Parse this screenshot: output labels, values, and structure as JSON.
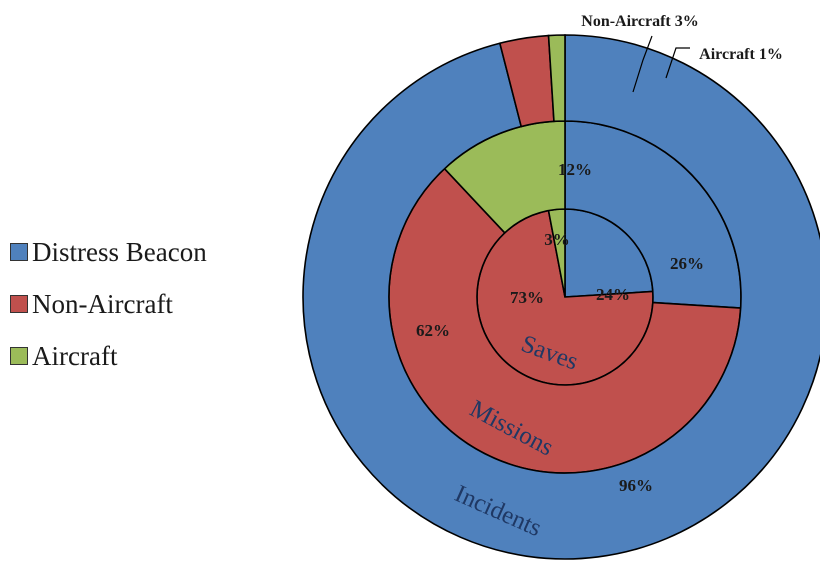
{
  "chart_data": {
    "type": "pie",
    "subtype": "nested-donut",
    "categories": [
      "Distress Beacon",
      "Non-Aircraft",
      "Aircraft"
    ],
    "colors": [
      "#4f81bd",
      "#c0504d",
      "#9bbb59"
    ],
    "series": [
      {
        "name": "Incidents",
        "values": [
          96,
          3,
          1
        ],
        "labels": [
          "96%",
          "Non-Aircraft 3%",
          "Aircraft 1%"
        ]
      },
      {
        "name": "Missions",
        "values": [
          26,
          62,
          12
        ],
        "labels": [
          "26%",
          "62%",
          "12%"
        ]
      },
      {
        "name": "Saves",
        "values": [
          24,
          73,
          3
        ],
        "labels": [
          "24%",
          "73%",
          "3%"
        ]
      }
    ],
    "legend_position": "left"
  },
  "legend": {
    "items": [
      {
        "label": "Distress Beacon",
        "color": "#4f81bd"
      },
      {
        "label": "Non-Aircraft",
        "color": "#c0504d"
      },
      {
        "label": "Aircraft",
        "color": "#9bbb59"
      }
    ]
  }
}
